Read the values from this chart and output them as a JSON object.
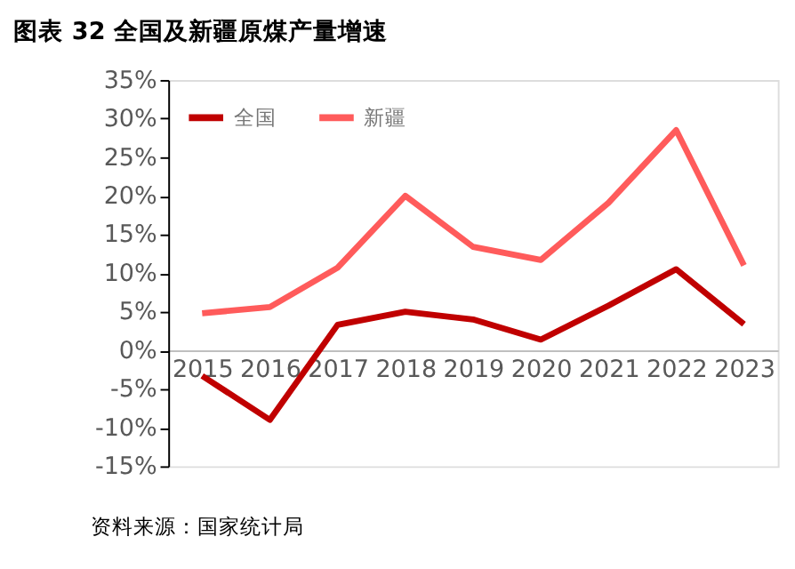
{
  "chart_data": {
    "type": "line",
    "title": "图表 32 全国及新疆原煤产量增速",
    "categories": [
      "2015",
      "2016",
      "2017",
      "2018",
      "2019",
      "2020",
      "2021",
      "2022",
      "2023"
    ],
    "series": [
      {
        "name": "全国",
        "color": "#c00000",
        "values": [
          -3.3,
          -9.0,
          3.3,
          5.0,
          4.0,
          1.4,
          5.8,
          10.5,
          3.4
        ]
      },
      {
        "name": "新疆",
        "color": "#ff5b5b",
        "values": [
          4.8,
          5.6,
          10.7,
          20.0,
          13.4,
          11.7,
          19.1,
          28.5,
          11.0
        ]
      }
    ],
    "ylim": [
      -15,
      35
    ],
    "yticks": [
      {
        "value": -15,
        "label": "-15%"
      },
      {
        "value": -10,
        "label": "-10%"
      },
      {
        "value": -5,
        "label": "-5%"
      },
      {
        "value": 0,
        "label": "0%"
      },
      {
        "value": 5,
        "label": "5%"
      },
      {
        "value": 10,
        "label": "10%"
      },
      {
        "value": 15,
        "label": "15%"
      },
      {
        "value": 20,
        "label": "20%"
      },
      {
        "value": 25,
        "label": "25%"
      },
      {
        "value": 30,
        "label": "30%"
      },
      {
        "value": 35,
        "label": "35%"
      }
    ],
    "grid": false,
    "legend": "top left",
    "marker": "none",
    "line_style": "solid",
    "annotations": [
      "资料来源：国家统计局"
    ]
  }
}
